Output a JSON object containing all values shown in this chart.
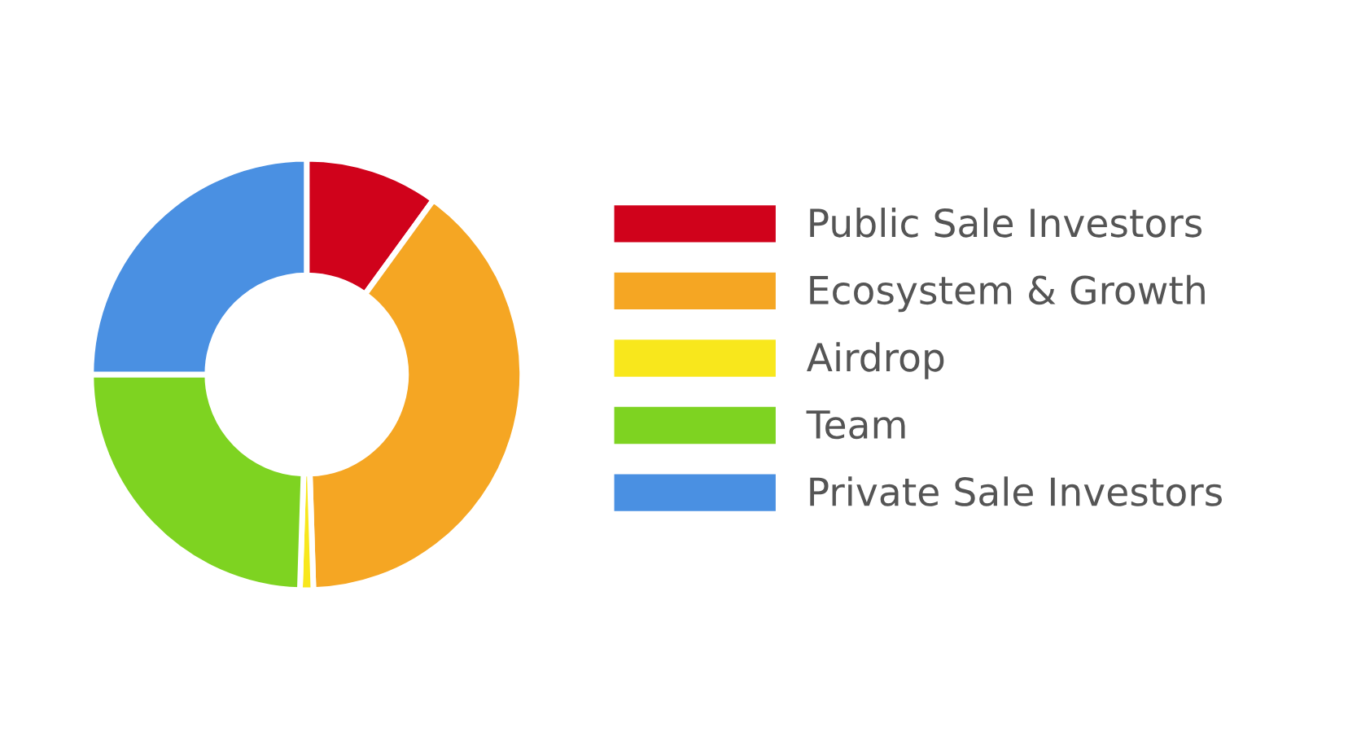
{
  "chart_data": {
    "type": "donut",
    "categories": [
      "Public Sale Investors",
      "Ecosystem & Growth",
      "Airdrop",
      "Team",
      "Private Sale Investors"
    ],
    "values": [
      10,
      39.5,
      1,
      24.5,
      25
    ],
    "colors": [
      "#d0021b",
      "#f5a623",
      "#f8e71c",
      "#7ed321",
      "#4a90e2"
    ],
    "legend": "right"
  }
}
